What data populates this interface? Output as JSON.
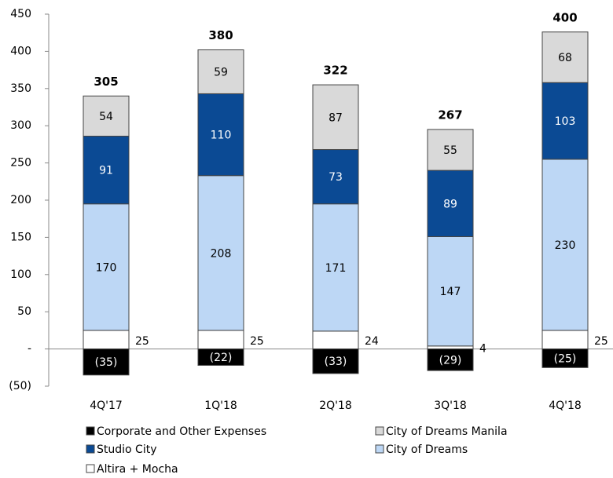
{
  "chart_data": {
    "type": "stacked_bar",
    "categories": [
      "4Q'17",
      "1Q'18",
      "2Q'18",
      "3Q'18",
      "4Q'18"
    ],
    "series": [
      {
        "name": "Corporate and Other Expenses",
        "color": "#000000",
        "values": [
          -35,
          -22,
          -33,
          -29,
          -25
        ],
        "value_labels": [
          "(35)",
          "(22)",
          "(33)",
          "(29)",
          "(25)"
        ]
      },
      {
        "name": "City of Dreams Manila",
        "color": "#d9d9d9",
        "values": [
          54,
          59,
          87,
          55,
          68
        ]
      },
      {
        "name": "Studio City",
        "color": "#0b4a94",
        "values": [
          91,
          110,
          73,
          89,
          103
        ]
      },
      {
        "name": "City of Dreams",
        "color": "#bdd7f5",
        "values": [
          170,
          208,
          171,
          147,
          230
        ]
      },
      {
        "name": "Altira + Mocha",
        "color": "#ffffff",
        "values": [
          25,
          25,
          24,
          4,
          25
        ]
      }
    ],
    "totals": [
      305,
      380,
      322,
      267,
      400
    ],
    "ylim": [
      -50,
      450
    ],
    "yticks": [
      {
        "value": -50,
        "label": "(50)"
      },
      {
        "value": 0,
        "label": "-"
      },
      50,
      100,
      150,
      200,
      250,
      300,
      350,
      400,
      450
    ]
  }
}
